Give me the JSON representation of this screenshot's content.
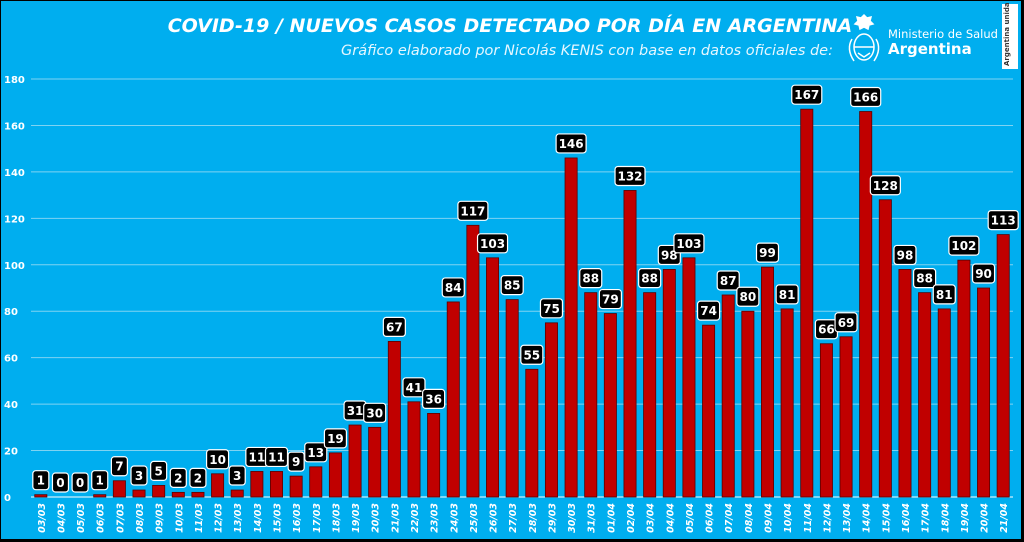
{
  "title": "COVID-19  /  NUEVOS CASOS DETECTADO POR DÍA EN ARGENTINA",
  "subtitle": "Gráfico elaborado por Nicolás KENIS con base en datos oficiales de:",
  "logo": {
    "line1": "Ministerio de Salud",
    "line2": "Argentina",
    "icon": "national-coat-of-arms-icon"
  },
  "stamp": {
    "text": "Argentina unida"
  },
  "colors": {
    "background": "#00aeef",
    "bar": "#c00000",
    "label_box": "#000000",
    "text": "#ffffff",
    "gridline": "#7fd3f2"
  },
  "chart_data": {
    "type": "bar",
    "title": "COVID-19  /  NUEVOS CASOS DETECTADO POR DÍA EN ARGENTINA",
    "xlabel": "",
    "ylabel": "",
    "ylim": [
      0,
      180
    ],
    "yticks": [
      0,
      20,
      40,
      60,
      80,
      100,
      120,
      140,
      160,
      180
    ],
    "grid": true,
    "legend": "none",
    "categories": [
      "03/03",
      "04/03",
      "05/03",
      "06/03",
      "07/03",
      "08/03",
      "09/03",
      "10/03",
      "11/03",
      "12/03",
      "13/03",
      "14/03",
      "15/03",
      "16/03",
      "17/03",
      "18/03",
      "19/03",
      "20/03",
      "21/03",
      "22/03",
      "23/03",
      "24/03",
      "25/03",
      "26/03",
      "27/03",
      "28/03",
      "29/03",
      "30/03",
      "31/03",
      "01/04",
      "02/04",
      "03/04",
      "04/04",
      "05/04",
      "06/04",
      "07/04",
      "08/04",
      "09/04",
      "10/04",
      "11/04",
      "12/04",
      "13/04",
      "14/04",
      "15/04",
      "16/04",
      "17/04",
      "18/04",
      "19/04",
      "20/04",
      "21/04"
    ],
    "values": [
      1,
      0,
      0,
      1,
      7,
      3,
      5,
      2,
      2,
      10,
      3,
      11,
      11,
      9,
      13,
      19,
      31,
      30,
      67,
      41,
      36,
      84,
      117,
      103,
      85,
      55,
      75,
      146,
      88,
      79,
      132,
      88,
      98,
      103,
      74,
      87,
      80,
      99,
      81,
      167,
      66,
      69,
      166,
      128,
      98,
      88,
      81,
      102,
      90,
      113
    ]
  }
}
